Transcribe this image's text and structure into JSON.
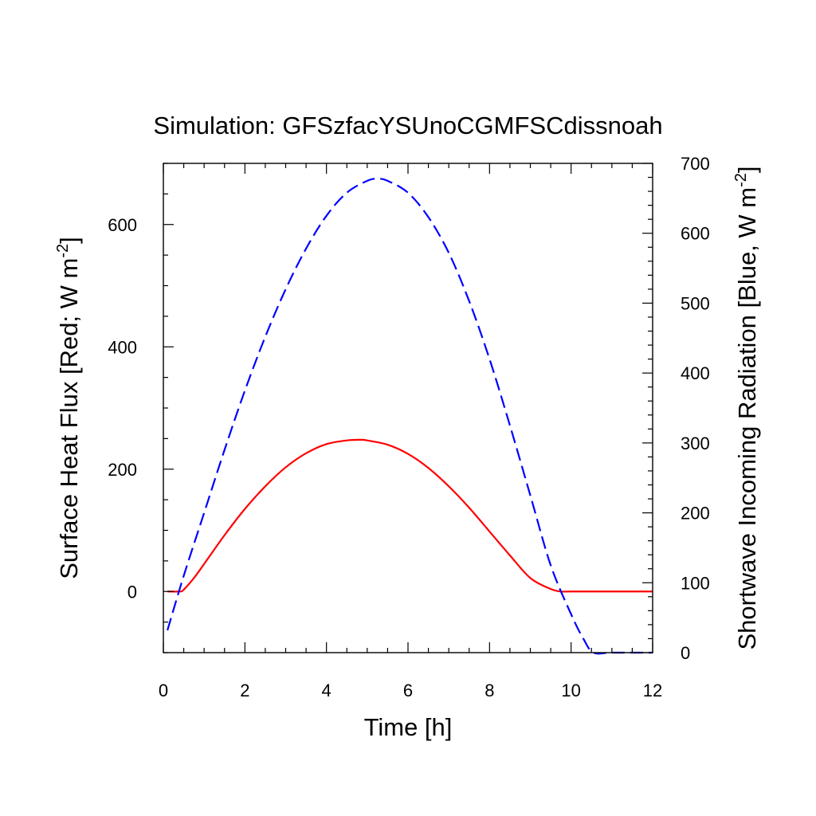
{
  "chart_data": {
    "type": "line",
    "title": "Simulation: GFSzfacYSUnoCGMFSCdissnoah",
    "xlabel": "Time [h]",
    "ylabel_left": "Surface Heat Flux [Red; W m",
    "ylabel_left_sup": "-2",
    "ylabel_left_end": "]",
    "ylabel_right": "Shortwave Incoming Radiation [Blue, W m",
    "ylabel_right_sup": "-2",
    "ylabel_right_end": "]",
    "xlim": [
      0,
      12
    ],
    "ylim_left": [
      -100,
      700
    ],
    "ylim_right": [
      0,
      700
    ],
    "x_ticks": [
      0,
      2,
      4,
      6,
      8,
      10,
      12
    ],
    "y_left_ticks": [
      0,
      200,
      400,
      600
    ],
    "y_right_ticks": [
      0,
      100,
      200,
      300,
      400,
      500,
      600,
      700
    ],
    "grid": false,
    "legend": "none",
    "series": [
      {
        "axis": "left",
        "color": "#ff0000",
        "dash": "solid",
        "x": [
          0.1,
          0.4,
          0.5,
          0.75,
          1,
          1.5,
          2,
          2.5,
          3,
          3.5,
          4,
          4.5,
          4.85,
          5,
          5.5,
          6,
          6.5,
          7,
          7.5,
          8,
          8.5,
          9,
          9.5,
          9.75,
          10,
          11,
          12
        ],
        "values": [
          0,
          0,
          3,
          22,
          45,
          92,
          135,
          172,
          203,
          226,
          241,
          247,
          248,
          247,
          240,
          225,
          202,
          172,
          137,
          98,
          59,
          22,
          4,
          0,
          0,
          0,
          0
        ]
      },
      {
        "axis": "right",
        "color": "#0000ff",
        "dash": "dashed",
        "x": [
          0.1,
          0.5,
          1,
          1.5,
          2,
          2.5,
          3,
          3.5,
          4,
          4.5,
          5,
          5.25,
          5.5,
          6,
          6.5,
          7,
          7.5,
          8,
          8.5,
          9,
          9.5,
          10,
          10.3,
          10.55,
          11,
          12
        ],
        "values": [
          32,
          110,
          200,
          290,
          375,
          452,
          520,
          578,
          625,
          658,
          675,
          678,
          675,
          658,
          623,
          572,
          503,
          420,
          325,
          225,
          125,
          55,
          20,
          0,
          0,
          0
        ]
      }
    ]
  }
}
